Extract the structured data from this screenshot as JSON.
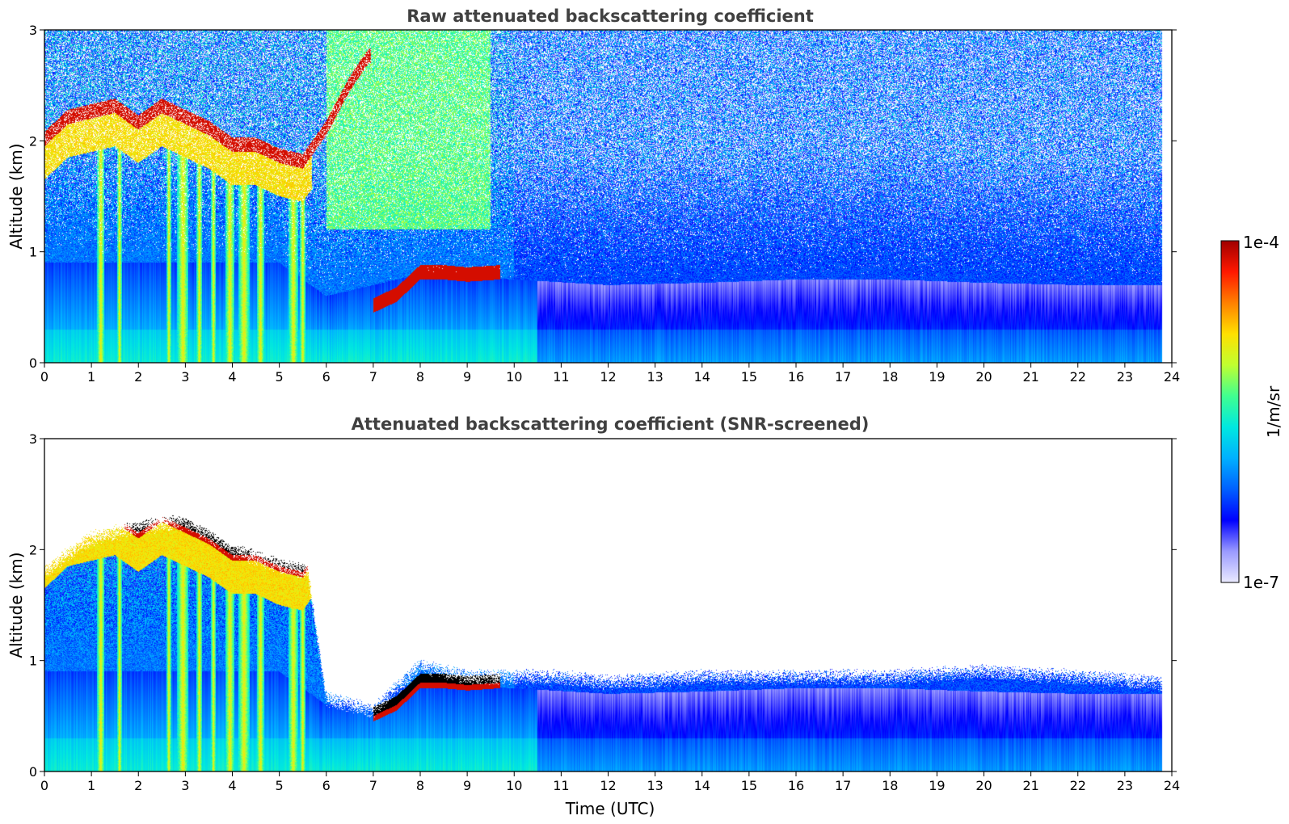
{
  "chart_data": [
    {
      "type": "heatmap",
      "title": "Raw attenuated backscattering coefficient",
      "xlabel": "",
      "ylabel": "Altitude (km)",
      "xlim": [
        0,
        24
      ],
      "ylim": [
        0,
        3
      ],
      "x_ticks": [
        "0",
        "1",
        "2",
        "3",
        "4",
        "5",
        "6",
        "7",
        "8",
        "9",
        "10",
        "11",
        "12",
        "13",
        "14",
        "15",
        "16",
        "17",
        "18",
        "19",
        "20",
        "21",
        "22",
        "23",
        "24"
      ],
      "y_ticks": [
        "0",
        "1",
        "2",
        "3"
      ],
      "data_end_hour": 23.8,
      "cloud_layer": [
        [
          0.0,
          2.0
        ],
        [
          0.5,
          2.2
        ],
        [
          1.0,
          2.25
        ],
        [
          1.5,
          2.3
        ],
        [
          2.0,
          2.15
        ],
        [
          2.5,
          2.3
        ],
        [
          3.0,
          2.2
        ],
        [
          3.5,
          2.1
        ],
        [
          4.0,
          1.95
        ],
        [
          4.5,
          1.95
        ],
        [
          5.0,
          1.85
        ],
        [
          5.5,
          1.8
        ],
        [
          6.0,
          2.1
        ],
        [
          6.5,
          2.5
        ],
        [
          6.9,
          2.75
        ],
        [
          7.0,
          0.5
        ],
        [
          7.5,
          0.6
        ],
        [
          8.0,
          0.8
        ],
        [
          8.5,
          0.8
        ],
        [
          9.0,
          0.78
        ],
        [
          9.7,
          0.8
        ]
      ],
      "boundary_layer_top": [
        [
          0,
          0.9
        ],
        [
          5,
          0.9
        ],
        [
          6,
          0.6
        ],
        [
          8,
          0.8
        ],
        [
          10,
          0.75
        ],
        [
          12,
          0.7
        ],
        [
          14,
          0.72
        ],
        [
          16,
          0.75
        ],
        [
          18,
          0.75
        ],
        [
          20,
          0.72
        ],
        [
          22,
          0.7
        ],
        [
          23.8,
          0.7
        ]
      ]
    },
    {
      "type": "heatmap",
      "title": "Attenuated backscattering coefficient (SNR-screened)",
      "xlabel": "Time (UTC)",
      "ylabel": "Altitude (km)",
      "xlim": [
        0,
        24
      ],
      "ylim": [
        0,
        3
      ],
      "x_ticks": [
        "0",
        "1",
        "2",
        "3",
        "4",
        "5",
        "6",
        "7",
        "8",
        "9",
        "10",
        "11",
        "12",
        "13",
        "14",
        "15",
        "16",
        "17",
        "18",
        "19",
        "20",
        "21",
        "22",
        "23",
        "24"
      ],
      "y_ticks": [
        "0",
        "1",
        "2",
        "3"
      ],
      "data_end_hour": 23.8,
      "screened_top": [
        [
          0,
          1.8
        ],
        [
          1,
          2.1
        ],
        [
          2,
          2.2
        ],
        [
          3,
          2.25
        ],
        [
          4,
          2.0
        ],
        [
          5,
          1.85
        ],
        [
          5.6,
          1.8
        ],
        [
          6.0,
          0.65
        ],
        [
          7.0,
          0.55
        ],
        [
          8.0,
          0.95
        ],
        [
          9.0,
          0.85
        ],
        [
          10.0,
          0.85
        ],
        [
          11,
          0.85
        ],
        [
          12,
          0.8
        ],
        [
          14,
          0.85
        ],
        [
          16,
          0.85
        ],
        [
          18,
          0.85
        ],
        [
          20,
          0.9
        ],
        [
          22,
          0.85
        ],
        [
          23.8,
          0.8
        ]
      ]
    }
  ],
  "colorbar": {
    "label": "1/m/sr",
    "max_label": "1e-4",
    "min_label": "1e-7",
    "colors": [
      "#eaeaff",
      "#9a9aff",
      "#0000ff",
      "#0060ff",
      "#00b0ff",
      "#00e8e0",
      "#40ff90",
      "#c0ff30",
      "#ffe000",
      "#ff8000",
      "#ff1800",
      "#a00000"
    ]
  }
}
